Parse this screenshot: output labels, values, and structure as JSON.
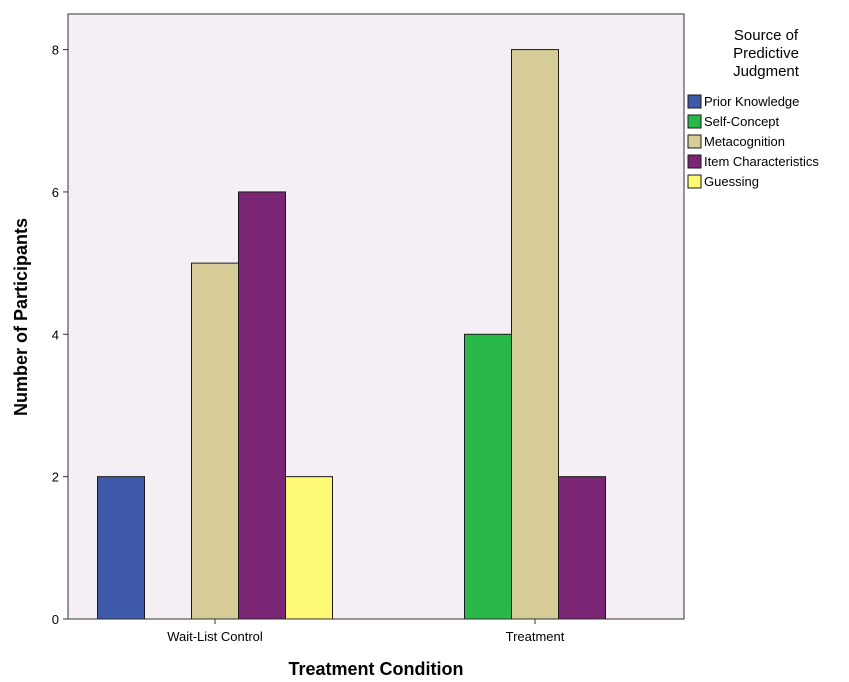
{
  "chart_data": {
    "type": "bar",
    "categories": [
      "Wait-List Control",
      "Treatment"
    ],
    "series": [
      {
        "name": "Prior Knowledge",
        "color": "#3e59a8",
        "values": [
          2,
          0
        ]
      },
      {
        "name": "Self-Concept",
        "color": "#2bb84a",
        "values": [
          0,
          4
        ]
      },
      {
        "name": "Metacognition",
        "color": "#d6cc97",
        "values": [
          5,
          8
        ]
      },
      {
        "name": "Item Characteristics",
        "color": "#7b2675",
        "values": [
          6,
          2
        ]
      },
      {
        "name": "Guessing",
        "color": "#fdf974",
        "values": [
          2,
          0
        ]
      }
    ],
    "xlabel": "Treatment Condition",
    "ylabel": "Number of Participants",
    "ylim": [
      0,
      8.5
    ],
    "yticks": [
      0,
      2,
      4,
      6,
      8
    ],
    "grid": false,
    "plot_background": "#f5eff5",
    "legend": {
      "title_lines": [
        "Source of",
        "Predictive",
        "Judgment"
      ],
      "placement": "right"
    }
  }
}
